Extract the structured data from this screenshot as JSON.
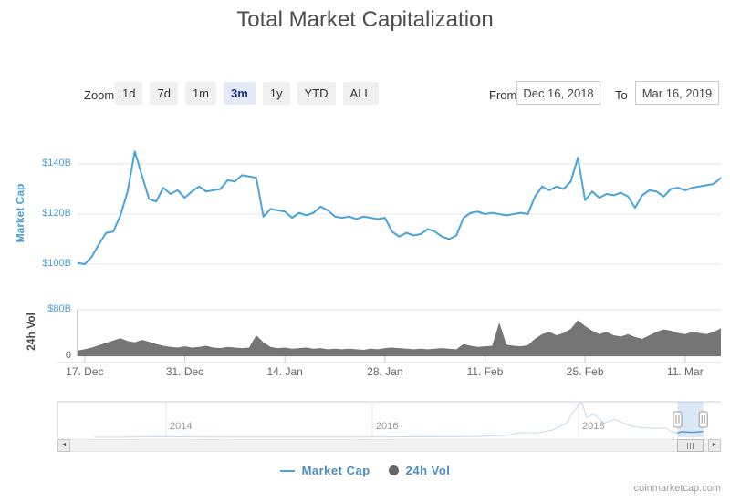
{
  "title": "Total Market Capitalization",
  "toolbar": {
    "zoom_label": "Zoom",
    "buttons": [
      {
        "label": "1d",
        "active": false
      },
      {
        "label": "7d",
        "active": false
      },
      {
        "label": "1m",
        "active": false
      },
      {
        "label": "3m",
        "active": true
      },
      {
        "label": "1y",
        "active": false
      },
      {
        "label": "YTD",
        "active": false
      },
      {
        "label": "ALL",
        "active": false
      }
    ],
    "from_label": "From",
    "from_value": "Dec 16, 2018",
    "to_label": "To",
    "to_value": "Mar 16, 2019"
  },
  "legend": [
    {
      "symbol": "line",
      "label": "Market Cap"
    },
    {
      "symbol": "circle",
      "label": "24h Vol"
    }
  ],
  "watermark": "coinmarketcap.com",
  "icons": {
    "scroll_left": "◄",
    "scroll_right": "►"
  },
  "colors": {
    "line": "#4ba3dc",
    "volume_fill": "#757575",
    "grid": "#e6e6e6",
    "axis_line": "#d8d8d8",
    "tick": "#cccccc",
    "nav_outline": "#cccccc",
    "nav_series_dim": "#c9d8e6",
    "nav_series_active": "#5b9bd5",
    "selection_fill": "rgba(91,156,213,0.22)",
    "handle_stroke": "#979797"
  },
  "chart_data": {
    "type": "line",
    "x_start_date": "Dec 16, 2018",
    "x_end_date": "Mar 16, 2019",
    "x_days_total": 90,
    "x_tick_labels": [
      "17. Dec",
      "31. Dec",
      "14. Jan",
      "28. Jan",
      "11. Feb",
      "25. Feb",
      "11. Mar"
    ],
    "x_tick_day_offsets": [
      1,
      15,
      29,
      43,
      57,
      71,
      85
    ],
    "market_cap": {
      "type": "line",
      "name": "Market Cap",
      "unit": "billion USD",
      "ylim": [
        97,
        150
      ],
      "axis_ticks": [
        {
          "value": 100,
          "label": "$100B"
        },
        {
          "value": 120,
          "label": "$120B"
        },
        {
          "value": 140,
          "label": "$140B"
        }
      ],
      "values": [
        100.5,
        100,
        103,
        108,
        112.5,
        113,
        119.5,
        129,
        145,
        135.5,
        126,
        125,
        130.5,
        128,
        129.5,
        126.5,
        129,
        131,
        129,
        129.5,
        130,
        133.5,
        133,
        135.5,
        135,
        134.5,
        119,
        122,
        121.5,
        121,
        118.5,
        120.5,
        119.5,
        120.5,
        123,
        121.5,
        119,
        118.5,
        119,
        118,
        119,
        118.5,
        118,
        118.5,
        113,
        111,
        112.5,
        111.5,
        112,
        114,
        113,
        111,
        110,
        111.5,
        118.5,
        120.5,
        121,
        120,
        120.5,
        120,
        119.5,
        120,
        120.5,
        120,
        127,
        131,
        129.5,
        131,
        130,
        133,
        142.5,
        125.5,
        129,
        126.5,
        128,
        127.5,
        128.5,
        127,
        122.5,
        127.5,
        129.5,
        129,
        127,
        130,
        130.5,
        129.5,
        130.5,
        131,
        131.5,
        132,
        134.5
      ]
    },
    "volume": {
      "type": "area",
      "name": "24h Vol",
      "unit": "billion USD",
      "ylim": [
        0,
        80
      ],
      "axis_ticks": [
        {
          "value": 80,
          "label": "$80B"
        },
        {
          "value": 0,
          "label": "0"
        }
      ],
      "values": [
        10,
        12,
        15,
        19,
        23,
        27,
        31,
        26,
        24,
        28,
        25,
        21,
        18,
        16,
        15,
        17,
        15,
        16,
        18,
        15,
        14,
        16,
        15,
        14,
        15,
        36,
        24,
        16,
        14,
        15,
        13,
        14,
        15,
        13,
        14,
        12,
        13,
        12,
        13,
        12,
        11,
        13,
        12,
        14,
        15,
        14,
        13,
        12,
        13,
        12,
        13,
        14,
        13,
        12,
        21,
        18,
        16,
        17,
        18,
        58,
        20,
        18,
        17,
        19,
        30,
        38,
        42,
        36,
        40,
        47,
        62,
        52,
        44,
        38,
        42,
        36,
        34,
        38,
        33,
        30,
        36,
        42,
        46,
        44,
        40,
        38,
        42,
        40,
        38,
        42,
        48
      ]
    },
    "navigator": {
      "ylim": [
        0,
        830
      ],
      "year_labels": [
        {
          "label": "2014",
          "year": 2014
        },
        {
          "label": "2016",
          "year": 2016
        },
        {
          "label": "2018",
          "year": 2018
        }
      ],
      "series": [
        [
          2013.3,
          2
        ],
        [
          2013.6,
          3
        ],
        [
          2013.88,
          15
        ],
        [
          2014,
          13
        ],
        [
          2014.3,
          7
        ],
        [
          2014.6,
          6
        ],
        [
          2015,
          4
        ],
        [
          2015.4,
          4
        ],
        [
          2015.8,
          5
        ],
        [
          2016,
          8
        ],
        [
          2016.4,
          10
        ],
        [
          2016.8,
          13
        ],
        [
          2017,
          18
        ],
        [
          2017.3,
          45
        ],
        [
          2017.45,
          110
        ],
        [
          2017.6,
          100
        ],
        [
          2017.75,
          170
        ],
        [
          2017.88,
          320
        ],
        [
          2017.95,
          600
        ],
        [
          2018.03,
          830
        ],
        [
          2018.08,
          450
        ],
        [
          2018.14,
          550
        ],
        [
          2018.25,
          330
        ],
        [
          2018.35,
          420
        ],
        [
          2018.5,
          270
        ],
        [
          2018.6,
          220
        ],
        [
          2018.72,
          210
        ],
        [
          2018.85,
          208
        ],
        [
          2018.9,
          130
        ],
        [
          2018.96,
          100
        ],
        [
          2019.0,
          130
        ],
        [
          2019.1,
          115
        ],
        [
          2019.21,
          135
        ]
      ],
      "selection_years": [
        2018.96,
        2019.21
      ]
    }
  }
}
